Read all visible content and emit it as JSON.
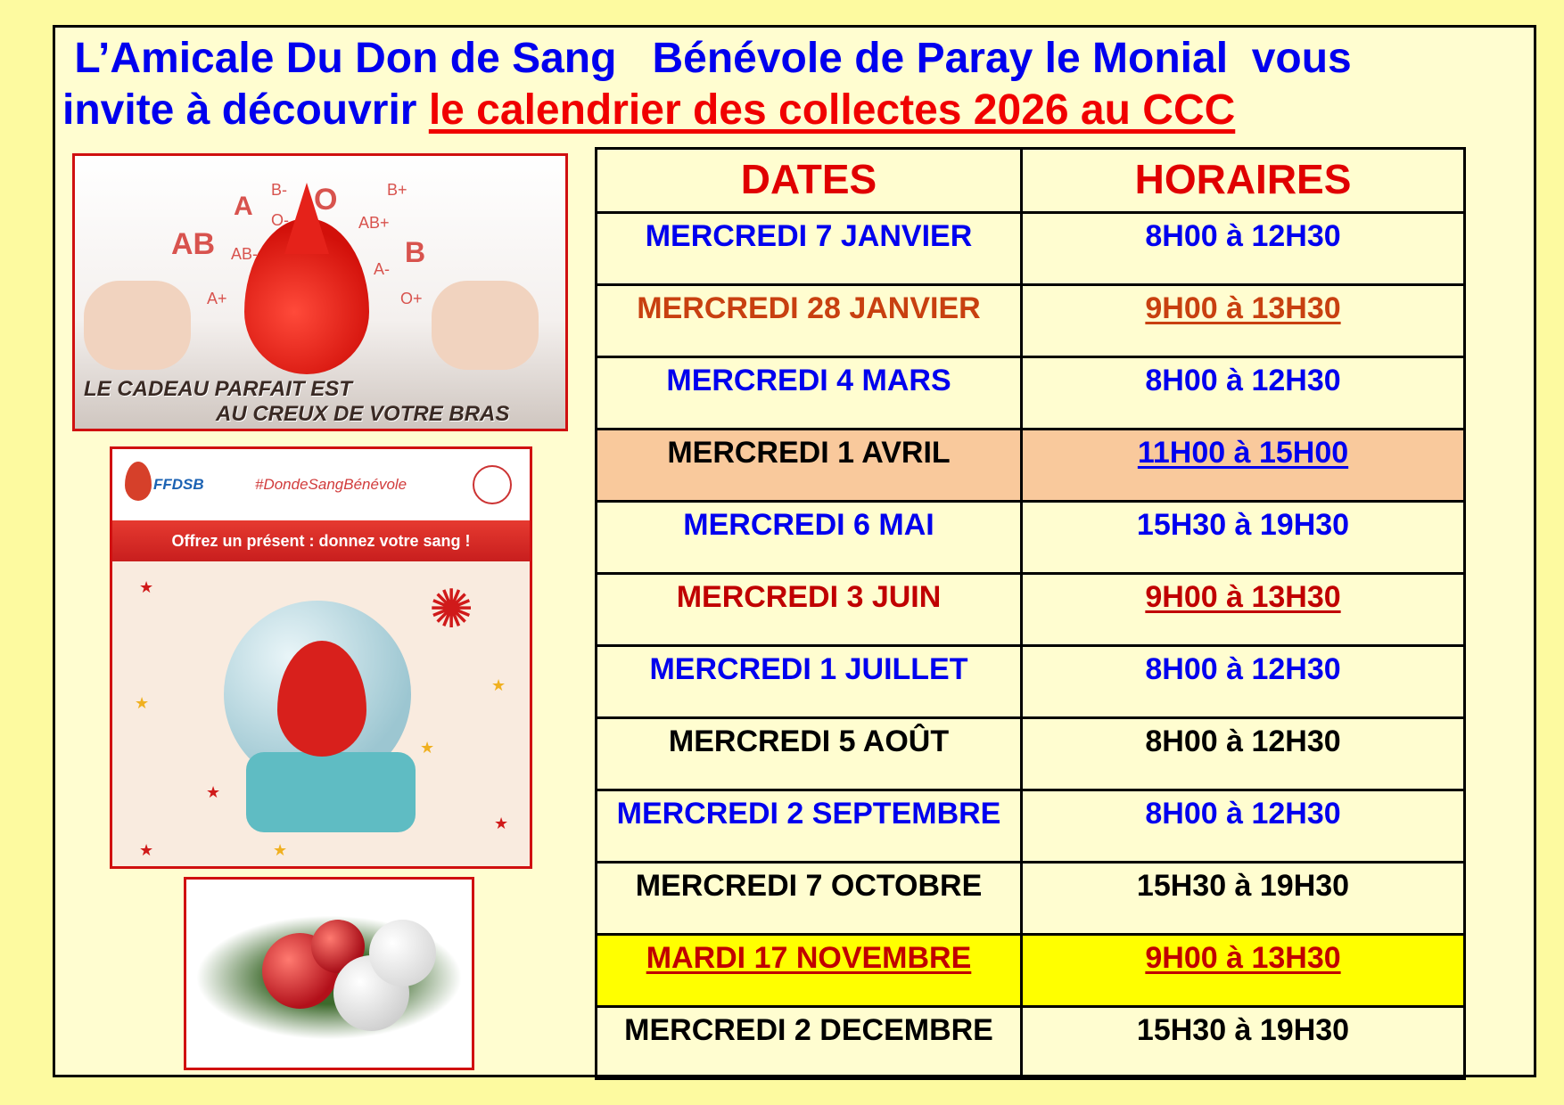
{
  "title": {
    "line1": " L’Amicale Du Don de Sang   Bénévole de Paray le Monial  vous",
    "line2_blue": "invite à découvrir ",
    "line2_red": "le calendrier des collectes 2026 au CCC"
  },
  "colors": {
    "blue": "#0000ee",
    "red": "#e00000",
    "orange": "#c84010",
    "darkred": "#c00000",
    "black": "#000000",
    "peach": "#f9c99c",
    "yellow": "#ffff00",
    "background": "#fffdd0"
  },
  "image1": {
    "blood_groups": [
      "A",
      "O",
      "AB",
      "B",
      "B-",
      "B+",
      "O-",
      "AB+",
      "AB-",
      "A-",
      "A+",
      "O+"
    ],
    "caption_line1": "LE CADEAU PARFAIT EST",
    "caption_line2": "AU CREUX DE VOTRE BRAS"
  },
  "image2": {
    "logo": "FFDSB",
    "hashtag": "#DondeSangBénévole",
    "banner": "Offrez un présent : donnez votre sang !"
  },
  "table": {
    "headers": [
      "DATES",
      "HORAIRES"
    ],
    "rows": [
      {
        "date": "MERCREDI 7 JANVIER",
        "time": "8H00 à 12H30",
        "date_color": "#0000ee",
        "time_color": "#0000ee",
        "date_underline": false,
        "time_underline": false,
        "bg": ""
      },
      {
        "date": "MERCREDI 28 JANVIER",
        "time": "9H00 à 13H30",
        "date_color": "#c84010",
        "time_color": "#c84010",
        "date_underline": false,
        "time_underline": true,
        "bg": ""
      },
      {
        "date": "MERCREDI 4 MARS",
        "time": "8H00 à 12H30",
        "date_color": "#0000ee",
        "time_color": "#0000ee",
        "date_underline": false,
        "time_underline": false,
        "bg": ""
      },
      {
        "date": "MERCREDI 1 AVRIL",
        "time": "11H00 à 15H00",
        "date_color": "#000000",
        "time_color": "#0000ee",
        "date_underline": false,
        "time_underline": true,
        "bg": "#f9c99c"
      },
      {
        "date": "MERCREDI 6 MAI",
        "time": "15H30 à 19H30",
        "date_color": "#0000ee",
        "time_color": "#0000ee",
        "date_underline": false,
        "time_underline": false,
        "bg": ""
      },
      {
        "date": "MERCREDI 3 JUIN",
        "time": "9H00 à 13H30",
        "date_color": "#c00000",
        "time_color": "#c00000",
        "date_underline": false,
        "time_underline": true,
        "bg": ""
      },
      {
        "date": "MERCREDI 1 JUILLET",
        "time": "8H00 à 12H30",
        "date_color": "#0000ee",
        "time_color": "#0000ee",
        "date_underline": false,
        "time_underline": false,
        "bg": ""
      },
      {
        "date": "MERCREDI 5 AOÛT",
        "time": "8H00 à 12H30",
        "date_color": "#000000",
        "time_color": "#000000",
        "date_underline": false,
        "time_underline": false,
        "bg": ""
      },
      {
        "date": "MERCREDI 2 SEPTEMBRE",
        "time": "8H00 à 12H30",
        "date_color": "#0000ee",
        "time_color": "#0000ee",
        "date_underline": false,
        "time_underline": false,
        "bg": ""
      },
      {
        "date": "MERCREDI 7 OCTOBRE",
        "time": "15H30 à 19H30",
        "date_color": "#000000",
        "time_color": "#000000",
        "date_underline": false,
        "time_underline": false,
        "bg": ""
      },
      {
        "date": "MARDI 17 NOVEMBRE",
        "time": "9H00 à 13H30",
        "date_color": "#c00000",
        "time_color": "#c00000",
        "date_underline": true,
        "time_underline": true,
        "bg": "#ffff00"
      },
      {
        "date": "MERCREDI 2 DECEMBRE",
        "time": "15H30 à 19H30",
        "date_color": "#000000",
        "time_color": "#000000",
        "date_underline": false,
        "time_underline": false,
        "bg": ""
      }
    ]
  }
}
